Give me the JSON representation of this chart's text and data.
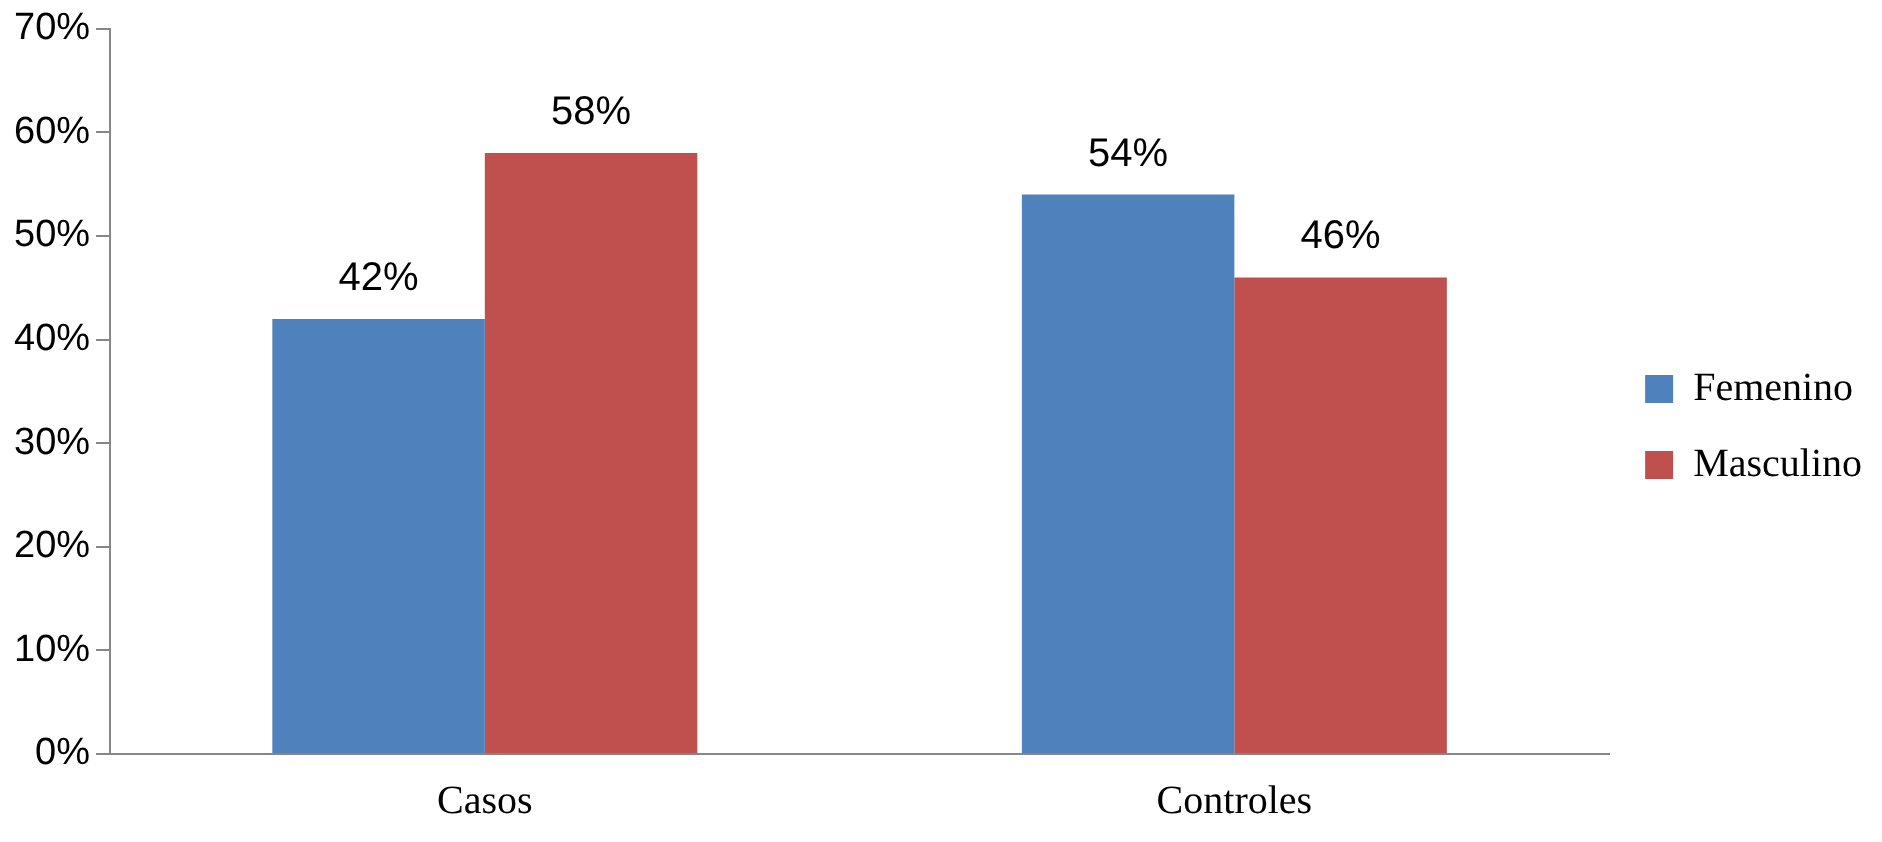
{
  "chart_data": {
    "type": "bar",
    "categories": [
      "Casos",
      "Controles"
    ],
    "series": [
      {
        "name": "Femenino",
        "color": "#4f81bd",
        "values": [
          42,
          54
        ],
        "value_labels": [
          "42%",
          "54%"
        ]
      },
      {
        "name": "Masculino",
        "color": "#c0504d",
        "values": [
          58,
          46
        ],
        "value_labels": [
          "58%",
          "46%"
        ]
      }
    ],
    "ylim": [
      0,
      70
    ],
    "yticks": [
      {
        "value": 0,
        "label": "0%"
      },
      {
        "value": 10,
        "label": "10%"
      },
      {
        "value": 20,
        "label": "20%"
      },
      {
        "value": 30,
        "label": "30%"
      },
      {
        "value": 40,
        "label": "40%"
      },
      {
        "value": 50,
        "label": "50%"
      },
      {
        "value": 60,
        "label": "60%"
      },
      {
        "value": 70,
        "label": "70%"
      }
    ],
    "grid": false,
    "legend": "right"
  }
}
